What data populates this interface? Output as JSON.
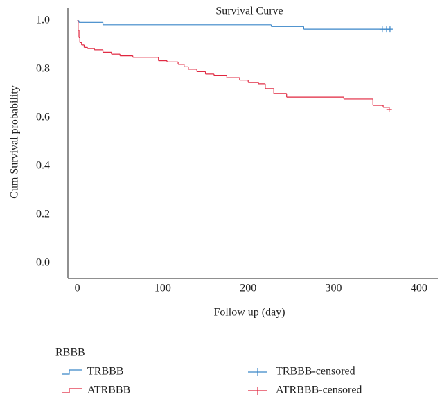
{
  "chart_data": {
    "type": "survival",
    "title": "Survival Curve",
    "x_label": "Follow up (day)",
    "y_label": "Cum Survival probability",
    "legend_title": "RBBB",
    "xlim": [
      -11,
      422
    ],
    "ylim": [
      -0.063,
      1.051
    ],
    "xticks": [
      0,
      100,
      200,
      300,
      400
    ],
    "yticks": [
      {
        "value": 0,
        "label": "0.0"
      },
      0.2,
      0.4,
      0.6,
      0.8,
      {
        "value": 1,
        "label": "1.0"
      }
    ],
    "series": [
      {
        "name": "TRBBB",
        "color": "#3a86c8",
        "x": [
          0,
          2,
          30,
          227,
          265,
          366
        ],
        "values": [
          1.0,
          0.993,
          0.983,
          0.976,
          0.965,
          0.965
        ]
      },
      {
        "name": "ATRBBB",
        "color": "#e0263f",
        "x": [
          0,
          1,
          2,
          3,
          5,
          8,
          12,
          20,
          30,
          40,
          50,
          65,
          95,
          105,
          118,
          125,
          130,
          140,
          150,
          160,
          175,
          190,
          200,
          212,
          220,
          230,
          245,
          312,
          346,
          358,
          365
        ],
        "values": [
          1.0,
          0.96,
          0.93,
          0.91,
          0.9,
          0.89,
          0.885,
          0.88,
          0.87,
          0.862,
          0.855,
          0.849,
          0.835,
          0.83,
          0.82,
          0.81,
          0.8,
          0.79,
          0.78,
          0.775,
          0.765,
          0.755,
          0.745,
          0.74,
          0.72,
          0.7,
          0.685,
          0.677,
          0.651,
          0.643,
          0.634
        ]
      }
    ],
    "censored": [
      {
        "name": "TRBBB-censored",
        "color": "#3a86c8",
        "x": [
          357,
          362,
          366
        ],
        "values": [
          0.965,
          0.965,
          0.965
        ]
      },
      {
        "name": "ATRBBB-censored",
        "color": "#e0263f",
        "x": [
          365
        ],
        "values": [
          0.634
        ]
      }
    ]
  }
}
